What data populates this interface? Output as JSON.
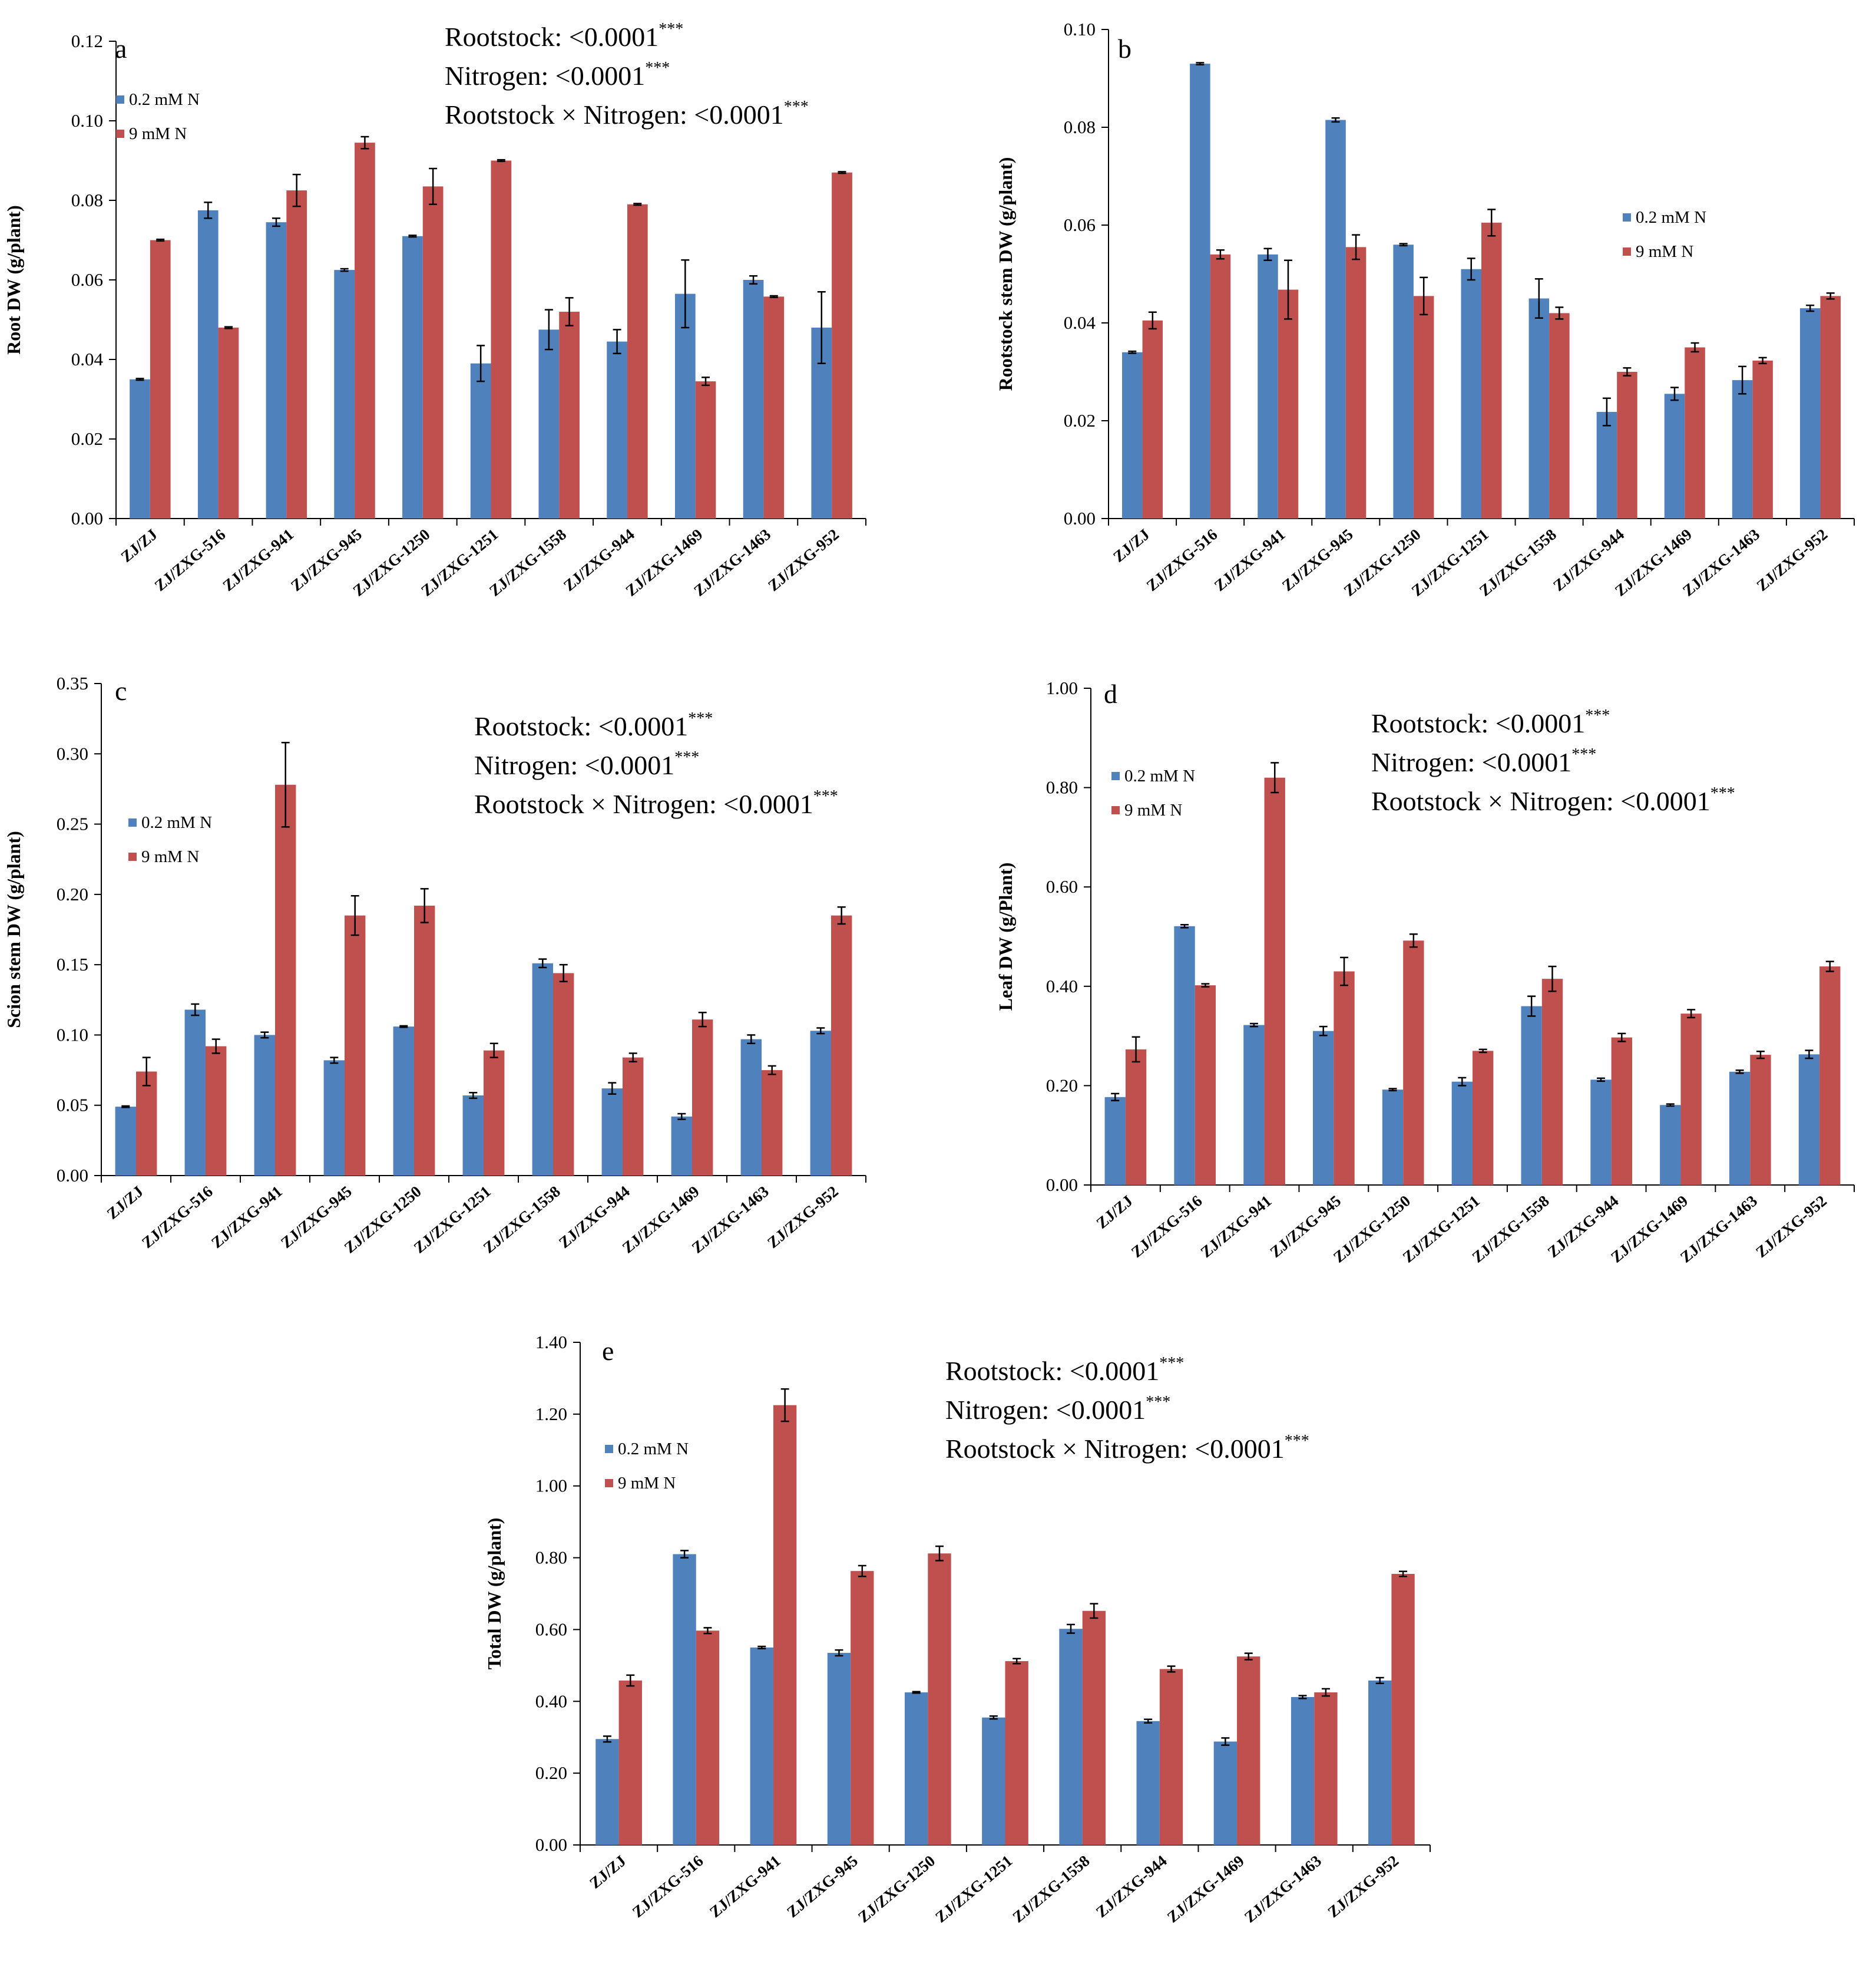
{
  "figure": {
    "colors": {
      "low_n": "#4f81bd",
      "high_n": "#c0504d",
      "axis": "#000000",
      "background": "#ffffff"
    }
  },
  "chart_data": [
    {
      "id": "a",
      "type": "bar",
      "panel_label": "a",
      "ylabel": "Root DW (g/plant)",
      "xlabel": "",
      "categories": [
        "ZJ/ZJ",
        "ZJ/ZXG-516",
        "ZJ/ZXG-941",
        "ZJ/ZXG-945",
        "ZJ/ZXG-1250",
        "ZJ/ZXG-1251",
        "ZJ/ZXG-1558",
        "ZJ/ZXG-944",
        "ZJ/ZXG-1469",
        "ZJ/ZXG-1463",
        "ZJ/ZXG-952"
      ],
      "ylim": [
        0,
        0.12
      ],
      "yticks": [
        0,
        0.02,
        0.04,
        0.06,
        0.08,
        0.1,
        0.12
      ],
      "ytick_labels": [
        "0.00",
        "0.02",
        "0.04",
        "0.06",
        "0.08",
        "0.10",
        "0.12"
      ],
      "series": [
        {
          "name": "0.2 mM N",
          "color": "#4f81bd",
          "values": [
            0.035,
            0.0775,
            0.0745,
            0.0625,
            0.071,
            0.039,
            0.0475,
            0.0445,
            0.0565,
            0.06,
            0.048
          ],
          "errors": [
            0.0002,
            0.002,
            0.001,
            0.0003,
            0.0002,
            0.0045,
            0.005,
            0.003,
            0.0085,
            0.001,
            0.009
          ]
        },
        {
          "name": "9 mM N",
          "color": "#c0504d",
          "values": [
            0.07,
            0.048,
            0.0825,
            0.0945,
            0.0835,
            0.09,
            0.052,
            0.079,
            0.0345,
            0.0558,
            0.087
          ],
          "errors": [
            0.0002,
            0.0002,
            0.004,
            0.0015,
            0.0045,
            0.0002,
            0.0035,
            0.0002,
            0.001,
            0.0002,
            0.0002
          ]
        }
      ],
      "legend": [
        "0.2 mM N",
        "9 mM N"
      ],
      "annotations": [
        {
          "text": "Rootstock:  <0.0001",
          "sup": "***"
        },
        {
          "text": "Nitrogen: <0.0001",
          "sup": "***"
        },
        {
          "text": "Rootstock × Nitrogen: <0.0001",
          "sup": "***"
        }
      ],
      "legend_position": "top-left",
      "annotation_position": "top-right"
    },
    {
      "id": "b",
      "type": "bar",
      "panel_label": "b",
      "ylabel": "Rootstock stem DW (g/plant)",
      "xlabel": "",
      "categories": [
        "ZJ/ZJ",
        "ZJ/ZXG-516",
        "ZJ/ZXG-941",
        "ZJ/ZXG-945",
        "ZJ/ZXG-1250",
        "ZJ/ZXG-1251",
        "ZJ/ZXG-1558",
        "ZJ/ZXG-944",
        "ZJ/ZXG-1469",
        "ZJ/ZXG-1463",
        "ZJ/ZXG-952"
      ],
      "ylim": [
        0,
        0.1
      ],
      "yticks": [
        0,
        0.02,
        0.04,
        0.06,
        0.08,
        0.1
      ],
      "ytick_labels": [
        "0.00",
        "0.02",
        "0.04",
        "0.06",
        "0.08",
        "0.10"
      ],
      "series": [
        {
          "name": "0.2 mM N",
          "color": "#4f81bd",
          "values": [
            0.034,
            0.093,
            0.054,
            0.0815,
            0.056,
            0.051,
            0.045,
            0.0218,
            0.0255,
            0.0283,
            0.043
          ],
          "errors": [
            0.0002,
            0.0002,
            0.0012,
            0.0004,
            0.0002,
            0.0022,
            0.004,
            0.0028,
            0.0013,
            0.0028,
            0.0006
          ]
        },
        {
          "name": "9 mM N",
          "color": "#c0504d",
          "values": [
            0.0405,
            0.054,
            0.0468,
            0.0555,
            0.0455,
            0.0605,
            0.042,
            0.03,
            0.035,
            0.0323,
            0.0455
          ],
          "errors": [
            0.0017,
            0.0009,
            0.006,
            0.0025,
            0.0038,
            0.0027,
            0.0012,
            0.0008,
            0.0009,
            0.0006,
            0.0006
          ]
        }
      ],
      "legend": [
        "0.2 mM N",
        "9 mM N"
      ],
      "annotations": [],
      "legend_position": "right"
    },
    {
      "id": "c",
      "type": "bar",
      "panel_label": "c",
      "ylabel": "Scion stem DW (g/plant)",
      "xlabel": "",
      "categories": [
        "ZJ/ZJ",
        "ZJ/ZXG-516",
        "ZJ/ZXG-941",
        "ZJ/ZXG-945",
        "ZJ/ZXG-1250",
        "ZJ/ZXG-1251",
        "ZJ/ZXG-1558",
        "ZJ/ZXG-944",
        "ZJ/ZXG-1469",
        "ZJ/ZXG-1463",
        "ZJ/ZXG-952"
      ],
      "ylim": [
        0,
        0.35
      ],
      "yticks": [
        0,
        0.05,
        0.1,
        0.15,
        0.2,
        0.25,
        0.3,
        0.35
      ],
      "ytick_labels": [
        "0.00",
        "0.05",
        "0.10",
        "0.15",
        "0.20",
        "0.25",
        "0.30",
        "0.35"
      ],
      "series": [
        {
          "name": "0.2 mM N",
          "color": "#4f81bd",
          "values": [
            0.049,
            0.118,
            0.1,
            0.082,
            0.106,
            0.057,
            0.151,
            0.062,
            0.042,
            0.097,
            0.103
          ],
          "errors": [
            0.0005,
            0.004,
            0.002,
            0.002,
            0.0005,
            0.002,
            0.003,
            0.004,
            0.002,
            0.003,
            0.002
          ]
        },
        {
          "name": "9 mM N",
          "color": "#c0504d",
          "values": [
            0.074,
            0.092,
            0.278,
            0.185,
            0.192,
            0.089,
            0.144,
            0.084,
            0.111,
            0.075,
            0.185
          ],
          "errors": [
            0.01,
            0.005,
            0.03,
            0.014,
            0.012,
            0.005,
            0.006,
            0.003,
            0.005,
            0.003,
            0.006
          ]
        }
      ],
      "legend": [
        "0.2 mM N",
        "9 mM N"
      ],
      "annotations": [
        {
          "text": "Rootstock:  <0.0001",
          "sup": "***"
        },
        {
          "text": "Nitrogen: <0.0001",
          "sup": "***"
        },
        {
          "text": "Rootstock × Nitrogen: <0.0001",
          "sup": "***"
        }
      ],
      "legend_position": "top-left",
      "annotation_position": "top-right"
    },
    {
      "id": "d",
      "type": "bar",
      "panel_label": "d",
      "ylabel": "Leaf DW (g/Plant)",
      "xlabel": "",
      "categories": [
        "ZJ/ZJ",
        "ZJ/ZXG-516",
        "ZJ/ZXG-941",
        "ZJ/ZXG-945",
        "ZJ/ZXG-1250",
        "ZJ/ZXG-1251",
        "ZJ/ZXG-1558",
        "ZJ/ZXG-944",
        "ZJ/ZXG-1469",
        "ZJ/ZXG-1463",
        "ZJ/ZXG-952"
      ],
      "ylim": [
        0,
        1.0
      ],
      "yticks": [
        0,
        0.2,
        0.4,
        0.6,
        0.8,
        1.0
      ],
      "ytick_labels": [
        "0.00",
        "0.20",
        "0.40",
        "0.60",
        "0.80",
        "1.00"
      ],
      "series": [
        {
          "name": "0.2 mM N",
          "color": "#4f81bd",
          "values": [
            0.177,
            0.521,
            0.322,
            0.31,
            0.192,
            0.208,
            0.36,
            0.212,
            0.161,
            0.228,
            0.263
          ],
          "errors": [
            0.007,
            0.003,
            0.003,
            0.009,
            0.002,
            0.008,
            0.02,
            0.003,
            0.002,
            0.003,
            0.008
          ]
        },
        {
          "name": "9 mM N",
          "color": "#c0504d",
          "values": [
            0.273,
            0.402,
            0.82,
            0.43,
            0.492,
            0.27,
            0.415,
            0.297,
            0.345,
            0.262,
            0.44
          ],
          "errors": [
            0.025,
            0.003,
            0.03,
            0.028,
            0.013,
            0.003,
            0.025,
            0.008,
            0.008,
            0.007,
            0.01
          ]
        }
      ],
      "legend": [
        "0.2 mM N",
        "9 mM N"
      ],
      "annotations": [
        {
          "text": "Rootstock:  <0.0001",
          "sup": "***"
        },
        {
          "text": "Nitrogen: <0.0001",
          "sup": "***"
        },
        {
          "text": "Rootstock × Nitrogen: <0.0001",
          "sup": "***"
        }
      ],
      "legend_position": "top-left",
      "annotation_position": "top-right"
    },
    {
      "id": "e",
      "type": "bar",
      "panel_label": "e",
      "ylabel": "Total DW (g/plant)",
      "xlabel": "",
      "categories": [
        "ZJ/ZJ",
        "ZJ/ZXG-516",
        "ZJ/ZXG-941",
        "ZJ/ZXG-945",
        "ZJ/ZXG-1250",
        "ZJ/ZXG-1251",
        "ZJ/ZXG-1558",
        "ZJ/ZXG-944",
        "ZJ/ZXG-1469",
        "ZJ/ZXG-1463",
        "ZJ/ZXG-952"
      ],
      "ylim": [
        0,
        1.4
      ],
      "yticks": [
        0,
        0.2,
        0.4,
        0.6,
        0.8,
        1.0,
        1.2,
        1.4
      ],
      "ytick_labels": [
        "0.00",
        "0.20",
        "0.40",
        "0.60",
        "0.80",
        "1.00",
        "1.20",
        "1.40"
      ],
      "series": [
        {
          "name": "0.2 mM N",
          "color": "#4f81bd",
          "values": [
            0.295,
            0.81,
            0.55,
            0.535,
            0.425,
            0.355,
            0.602,
            0.345,
            0.288,
            0.412,
            0.458
          ],
          "errors": [
            0.008,
            0.01,
            0.003,
            0.008,
            0.002,
            0.004,
            0.012,
            0.005,
            0.01,
            0.004,
            0.008
          ]
        },
        {
          "name": "9 mM N",
          "color": "#c0504d",
          "values": [
            0.458,
            0.597,
            1.225,
            0.763,
            0.812,
            0.512,
            0.652,
            0.49,
            0.525,
            0.425,
            0.755
          ],
          "errors": [
            0.015,
            0.008,
            0.045,
            0.015,
            0.02,
            0.007,
            0.02,
            0.008,
            0.009,
            0.01,
            0.007
          ]
        }
      ],
      "legend": [
        "0.2 mM N",
        "9 mM N"
      ],
      "annotations": [
        {
          "text": "Rootstock:  <0.0001",
          "sup": "***"
        },
        {
          "text": "Nitrogen: <0.0001",
          "sup": "***"
        },
        {
          "text": "Rootstock × Nitrogen: <0.0001",
          "sup": "***"
        }
      ],
      "legend_position": "top-left",
      "annotation_position": "top-right"
    }
  ]
}
